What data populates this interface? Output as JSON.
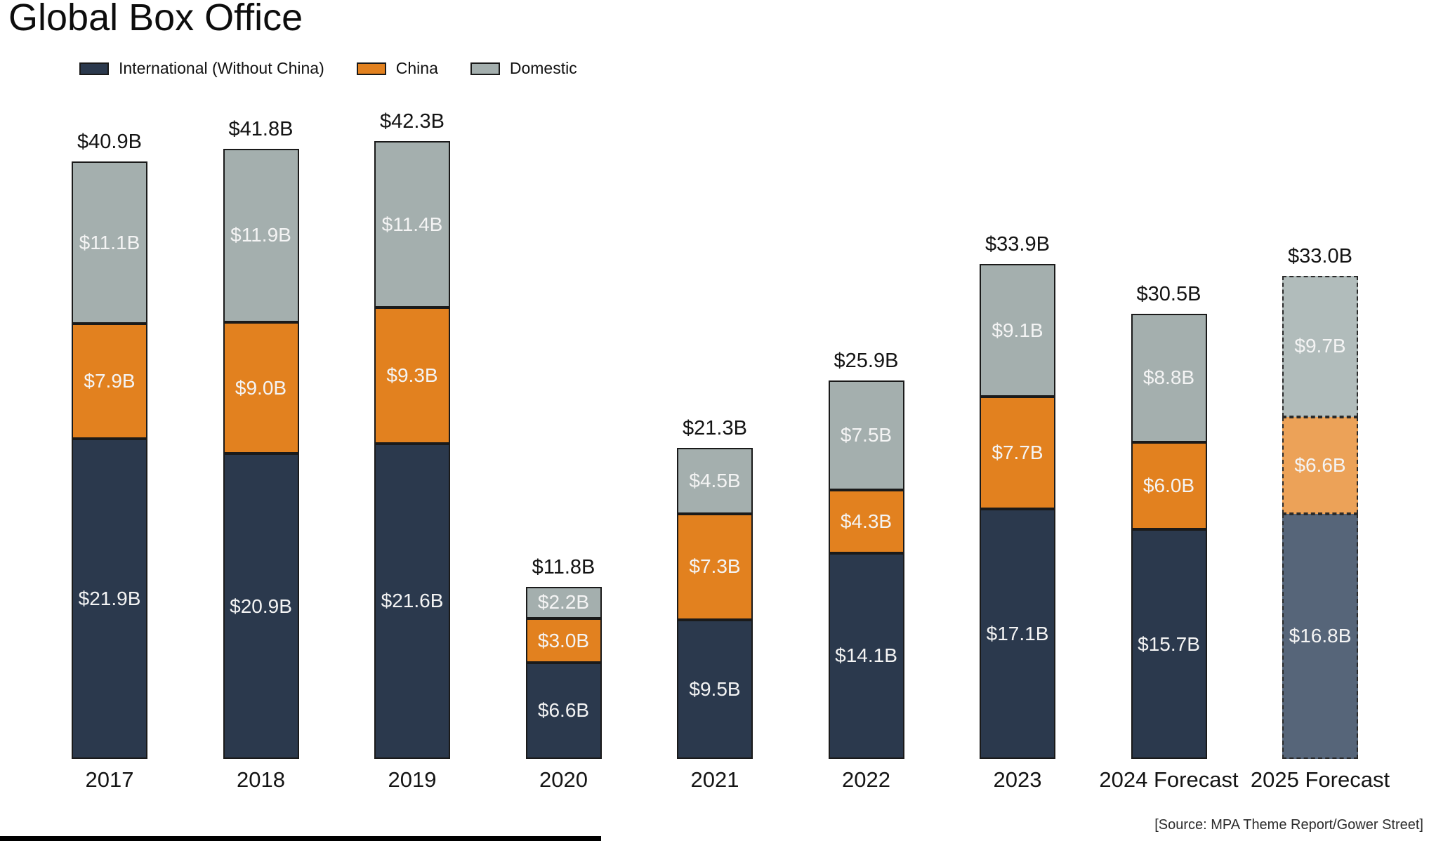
{
  "title": "Global Box Office",
  "source": "[Source: MPA Theme Report/Gower Street]",
  "legend": [
    {
      "label": "International (Without China)",
      "color": "#2b394d"
    },
    {
      "label": "China",
      "color": "#e2811f"
    },
    {
      "label": "Domestic",
      "color": "#a4afae"
    }
  ],
  "colors": {
    "international": "#2b394d",
    "china": "#e2811f",
    "domestic": "#a4afae",
    "international_forecast": "#566579",
    "china_forecast": "#eca258",
    "domestic_forecast": "#b1bcbb",
    "segment_border": "#1a1a1a",
    "forecast_border": "#2a2a2a",
    "label_text": "#f4f4f4",
    "axis_text": "#141414"
  },
  "chart_data": {
    "type": "bar",
    "stacked": true,
    "grid": false,
    "legend_position": "top",
    "ylim": [
      0,
      45
    ],
    "unit": "billion USD",
    "categories": [
      "2017",
      "2018",
      "2019",
      "2020",
      "2021",
      "2022",
      "2023",
      "2024 Forecast",
      "2025 Forecast"
    ],
    "series": [
      {
        "name": "International (Without China)",
        "values": [
          21.9,
          20.9,
          21.6,
          6.6,
          9.5,
          14.1,
          17.1,
          15.7,
          16.8
        ],
        "labels": [
          "$21.9B",
          "$20.9B",
          "$21.6B",
          "$6.6B",
          "$9.5B",
          "$14.1B",
          "$17.1B",
          "$15.7B",
          "$16.8B"
        ]
      },
      {
        "name": "China",
        "values": [
          7.9,
          9.0,
          9.3,
          3.0,
          7.3,
          4.3,
          7.7,
          6.0,
          6.6
        ],
        "labels": [
          "$7.9B",
          "$9.0B",
          "$9.3B",
          "$3.0B",
          "$7.3B",
          "$4.3B",
          "$7.7B",
          "$6.0B",
          "$6.6B"
        ]
      },
      {
        "name": "Domestic",
        "values": [
          11.1,
          11.9,
          11.4,
          2.2,
          4.5,
          7.5,
          9.1,
          8.8,
          9.7
        ],
        "labels": [
          "$11.1B",
          "$11.9B",
          "$11.4B",
          "$2.2B",
          "$4.5B",
          "$7.5B",
          "$9.1B",
          "$8.8B",
          "$9.7B"
        ]
      }
    ],
    "totals": [
      40.9,
      41.8,
      42.3,
      11.8,
      21.3,
      25.9,
      33.9,
      30.5,
      33.0
    ],
    "total_labels": [
      "$40.9B",
      "$41.8B",
      "$42.3B",
      "$11.8B",
      "$21.3B",
      "$25.9B",
      "$33.9B",
      "$30.5B",
      "$33.0B"
    ],
    "forecast_dashed_categories": [
      "2025 Forecast"
    ]
  }
}
